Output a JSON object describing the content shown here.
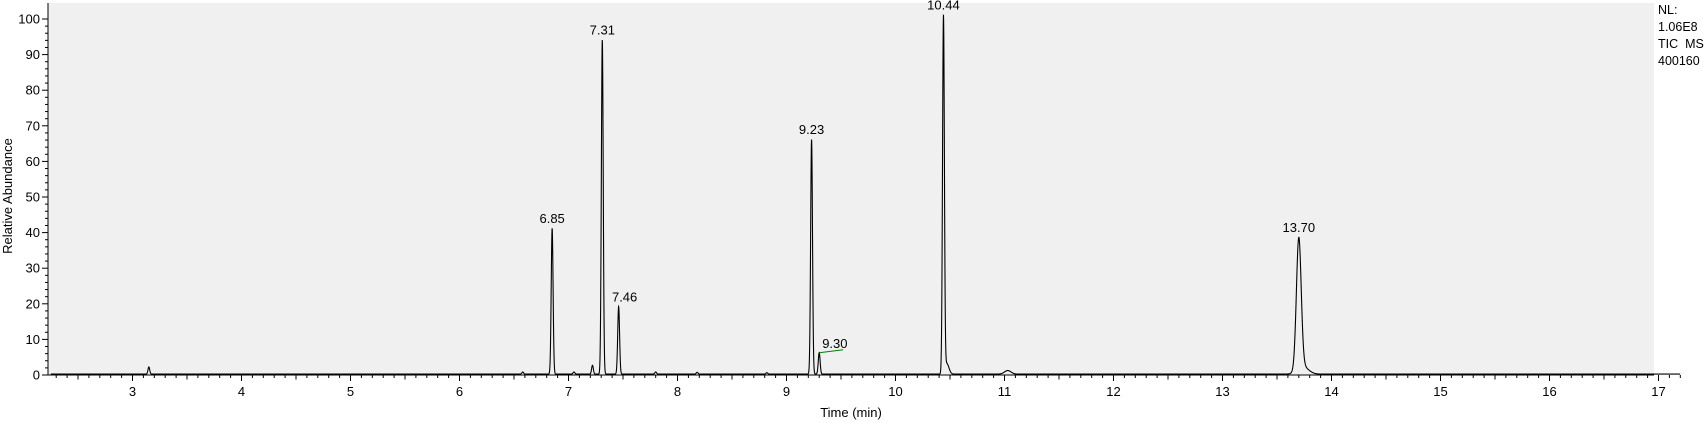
{
  "chart_data": {
    "type": "line",
    "title": "",
    "xlabel": "Time (min)",
    "ylabel": "Relative Abundance",
    "xlim": [
      2.25,
      17.2
    ],
    "ylim": [
      0,
      101
    ],
    "x_ticks": [
      "3",
      "4",
      "5",
      "6",
      "7",
      "8",
      "9",
      "10",
      "11",
      "12",
      "13",
      "14",
      "15",
      "16",
      "17"
    ],
    "y_ticks": [
      "0",
      "10",
      "20",
      "30",
      "40",
      "50",
      "60",
      "70",
      "80",
      "90",
      "100"
    ],
    "grid": false,
    "background": "#f0f0f0",
    "line_color": "#000000",
    "annotation_color": "#008000",
    "info": [
      "NL:",
      "1.06E8",
      "TIC  MS",
      "400160"
    ],
    "peaks": [
      {
        "label": "6.85",
        "x": 6.85,
        "y": 41
      },
      {
        "label": "7.31",
        "x": 7.31,
        "y": 94
      },
      {
        "label": "7.46",
        "x": 7.46,
        "y": 19
      },
      {
        "label": "9.23",
        "x": 9.23,
        "y": 66
      },
      {
        "label": "9.30",
        "x": 9.3,
        "y": 6
      },
      {
        "label": "10.44",
        "x": 10.44,
        "y": 100
      },
      {
        "label": "13.70",
        "x": 13.7,
        "y": 37
      }
    ],
    "minor_peaks": [
      {
        "x": 3.15,
        "y": 2
      },
      {
        "x": 6.58,
        "y": 0.6
      },
      {
        "x": 7.05,
        "y": 0.6
      },
      {
        "x": 7.22,
        "y": 2.5
      },
      {
        "x": 7.8,
        "y": 0.6
      },
      {
        "x": 8.18,
        "y": 0.5
      },
      {
        "x": 8.82,
        "y": 0.4
      },
      {
        "x": 11.03,
        "y": 1
      }
    ]
  }
}
